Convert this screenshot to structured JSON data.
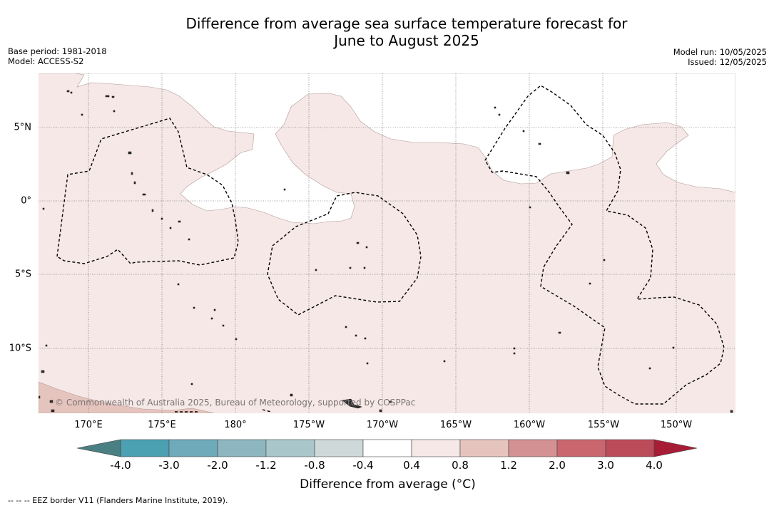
{
  "title": {
    "line1": "Difference from average sea surface temperature forecast for",
    "line2": "June to August 2025"
  },
  "meta": {
    "base_period": "Base period: 1981-2018",
    "model": "Model: ACCESS-S2",
    "model_run": "Model run: 10/05/2025",
    "issued": "Issued: 12/05/2025"
  },
  "latitude_labels": [
    "5°N",
    "0°",
    "5°S",
    "10°S"
  ],
  "longitude_labels": [
    "170°E",
    "175°E",
    "180°",
    "175°W",
    "170°W",
    "165°W",
    "160°W",
    "155°W",
    "150°W"
  ],
  "copyright": "© Commonwealth of Australia 2025, Bureau of Meteorology, supported by COSPPac",
  "colorbar": {
    "title": "Difference from average (°C)",
    "tick_labels": [
      "-4.0",
      "-3.0",
      "-2.0",
      "-1.2",
      "-0.8",
      "-0.4",
      "0.4",
      "0.8",
      "1.2",
      "2.0",
      "3.0",
      "4.0"
    ],
    "colors": [
      "#4a7f83",
      "#4ba0b2",
      "#6eaab9",
      "#8db6c0",
      "#a9c7ca",
      "#cfd8d9",
      "#ffffff",
      "#f5e8e6",
      "#e6c4be",
      "#d49193",
      "#c9666e",
      "#bb4b58",
      "#a81d36"
    ]
  },
  "map_colors": {
    "anomaly_0_4_to_0_8": "#f5e8e6",
    "anomaly_0_8_to_1_2": "#e6c4be",
    "neutral": "#ffffff"
  },
  "footnote": "--  --  -- EEZ border V11 (Flanders Marine Institute, 2019)."
}
